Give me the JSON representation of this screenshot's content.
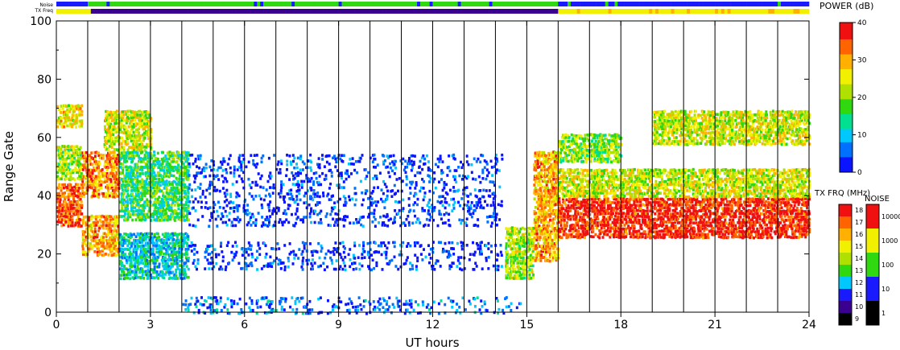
{
  "chart_data": {
    "type": "heatmap",
    "title": "",
    "xlabel": "UT hours",
    "ylabel": "Range Gate",
    "xlim": [
      0,
      24
    ],
    "ylim": [
      0,
      100
    ],
    "x_ticks": [
      "0",
      "3",
      "6",
      "9",
      "12",
      "15",
      "18",
      "21",
      "24"
    ],
    "y_ticks": [
      "0",
      "20",
      "40",
      "60",
      "80",
      "100"
    ],
    "grid": "vertical lines every 1 hour",
    "strip_labels": [
      "Noise",
      "TX Freq"
    ],
    "power_colorbar": {
      "label": "POWER (dB)",
      "range": [
        0,
        40
      ],
      "ticks": [
        "0",
        "10",
        "20",
        "30",
        "40"
      ]
    },
    "txfreq_colorbar": {
      "label": "TX FRQ (MHz)",
      "ticks": [
        "18",
        "17",
        "16",
        "15",
        "14",
        "13",
        "12",
        "11",
        "10",
        "9"
      ]
    },
    "noise_colorbar": {
      "label": "NOISE",
      "ticks": [
        "10000",
        "1000",
        "100",
        "10",
        "1"
      ]
    },
    "colors": {
      "scale": [
        "#0a14ff",
        "#0070ff",
        "#00c8ff",
        "#00e090",
        "#30d810",
        "#b0e000",
        "#f0f000",
        "#ffb000",
        "#ff6400",
        "#f01010"
      ]
    },
    "regions": [
      {
        "x": [
          0.0,
          0.8
        ],
        "y": [
          30,
          45
        ],
        "power": 35
      },
      {
        "x": [
          0.0,
          0.8
        ],
        "y": [
          46,
          58
        ],
        "power": 22
      },
      {
        "x": [
          0.0,
          0.8
        ],
        "y": [
          64,
          72
        ],
        "power": 26
      },
      {
        "x": [
          0.8,
          2.0
        ],
        "y": [
          20,
          34
        ],
        "power": 30
      },
      {
        "x": [
          0.8,
          2.0
        ],
        "y": [
          40,
          56
        ],
        "power": 32
      },
      {
        "x": [
          1.5,
          3.0
        ],
        "y": [
          56,
          70
        ],
        "power": 24
      },
      {
        "x": [
          2.0,
          4.2
        ],
        "y": [
          32,
          56
        ],
        "power": 16
      },
      {
        "x": [
          2.0,
          4.2
        ],
        "y": [
          12,
          28
        ],
        "power": 12
      },
      {
        "x": [
          4.2,
          14.2
        ],
        "y": [
          30,
          55
        ],
        "power": 3
      },
      {
        "x": [
          4.2,
          14.2
        ],
        "y": [
          15,
          25
        ],
        "power": 3
      },
      {
        "x": [
          4.0,
          14.8
        ],
        "y": [
          0,
          6
        ],
        "power": 6
      },
      {
        "x": [
          14.3,
          15.2
        ],
        "y": [
          12,
          30
        ],
        "power": 22
      },
      {
        "x": [
          15.2,
          16.0
        ],
        "y": [
          18,
          56
        ],
        "power": 30
      },
      {
        "x": [
          16.0,
          24.0
        ],
        "y": [
          26,
          40
        ],
        "power": 38
      },
      {
        "x": [
          16.0,
          24.0
        ],
        "y": [
          40,
          50
        ],
        "power": 24
      },
      {
        "x": [
          19.0,
          24.0
        ],
        "y": [
          58,
          70
        ],
        "power": 24
      },
      {
        "x": [
          16.0,
          18.0
        ],
        "y": [
          52,
          62
        ],
        "power": 20
      }
    ]
  }
}
